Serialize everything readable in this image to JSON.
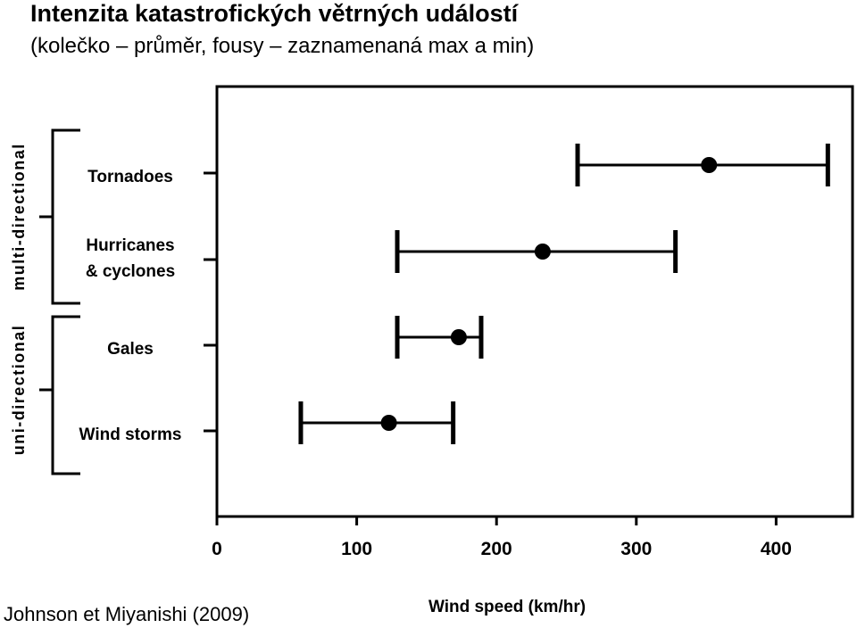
{
  "title": "Intenzita katastrofických větrných událostí",
  "subtitle": "(kolečko – průměr, fousy – zaznamenaná max a min)",
  "source": "Johnson et Miyanishi (2009)",
  "chart_data": {
    "type": "scatter",
    "xlabel": "Wind speed (km/hr)",
    "xlim": [
      0,
      450
    ],
    "xticks": [
      "0",
      "100",
      "200",
      "300",
      "400"
    ],
    "categories": [
      {
        "label": [
          "Tornadoes"
        ],
        "mean": 352,
        "min": 258,
        "max": 437
      },
      {
        "label": [
          "Hurricanes",
          "& cyclones"
        ],
        "mean": 233,
        "min": 129,
        "max": 328
      },
      {
        "label": [
          "Gales"
        ],
        "mean": 173,
        "min": 129,
        "max": 189
      },
      {
        "label": [
          "Wind storms"
        ],
        "mean": 123,
        "min": 60,
        "max": 169
      }
    ],
    "groups": [
      {
        "label": "multi-directional",
        "members": [
          "Tornadoes",
          "Hurricanes & cyclones"
        ]
      },
      {
        "label": "uni-directional",
        "members": [
          "Gales",
          "Wind storms"
        ]
      }
    ],
    "marker_color": "#000000"
  }
}
